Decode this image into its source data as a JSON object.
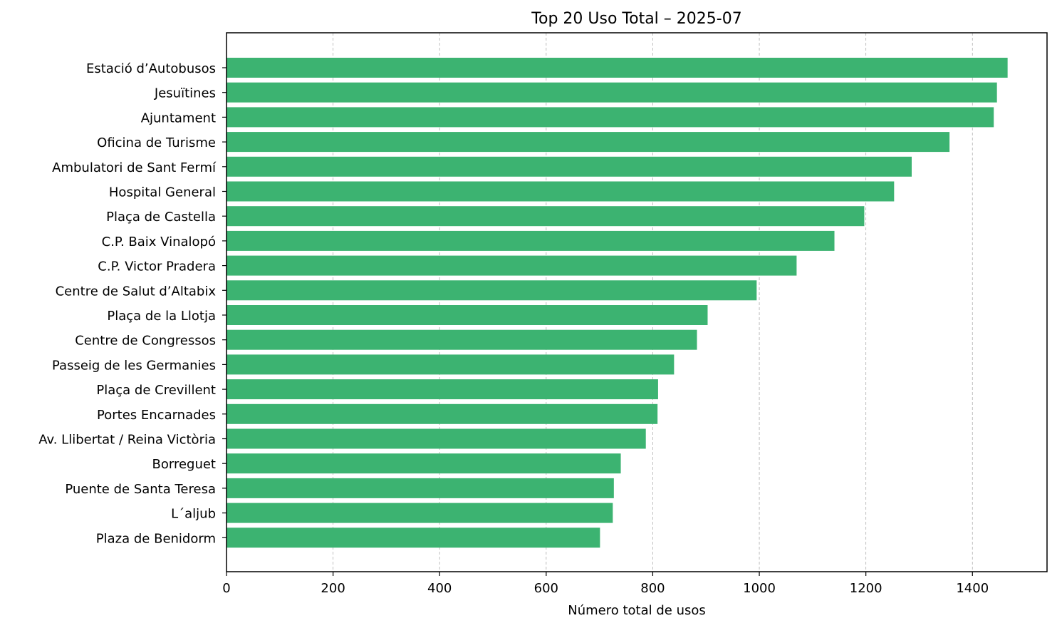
{
  "chart_data": {
    "type": "bar",
    "orientation": "horizontal",
    "title": "Top 20 Uso Total – 2025-07",
    "xlabel": "Número total de usos",
    "ylabel": "",
    "xlim": [
      0,
      1540
    ],
    "xticks": [
      0,
      200,
      400,
      600,
      800,
      1000,
      1200,
      1400
    ],
    "grid": "x-axis dashed",
    "bar_color": "#3cb371",
    "categories": [
      "Estació d’Autobusos",
      "Jesuïtines",
      "Ajuntament",
      "Oficina de Turisme",
      "Ambulatori de Sant Fermí",
      "Hospital General",
      "Plaça de Castella",
      "C.P. Baix Vinalopó",
      "C.P. Victor Pradera",
      "Centre de Salut d’Altabix",
      "Plaça de la Llotja",
      "Centre de Congressos",
      "Passeig de les Germanies",
      "Plaça de Crevillent",
      "Portes Encarnades",
      "Av. Llibertat / Reina Victòria",
      "Borreguet",
      "Puente de Santa Teresa",
      "L´aljub",
      "Plaza de Benidorm"
    ],
    "values": [
      1466,
      1446,
      1440,
      1357,
      1286,
      1253,
      1197,
      1141,
      1070,
      995,
      903,
      883,
      840,
      810,
      809,
      787,
      740,
      727,
      725,
      701
    ]
  }
}
